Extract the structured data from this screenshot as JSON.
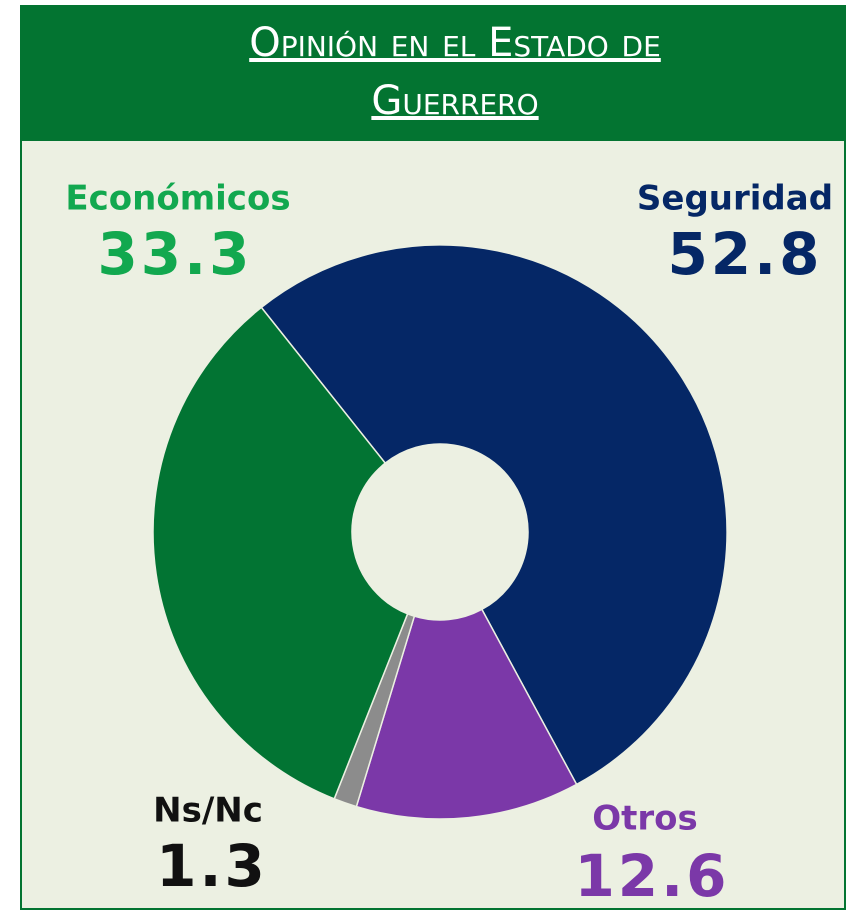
{
  "chart_data": {
    "type": "donut",
    "title": "Opinión en el Estado de Guerrero",
    "categories": [
      "Seguridad",
      "Otros",
      "Ns/Nc",
      "Económicos"
    ],
    "values": [
      52.8,
      12.6,
      1.3,
      33.3
    ],
    "colors": [
      "#052766",
      "#7b38a8",
      "#8c8c8c",
      "#027433"
    ],
    "label_colors": [
      "#052766",
      "#7b38a8",
      "#111111",
      "#12a84f"
    ]
  }
}
